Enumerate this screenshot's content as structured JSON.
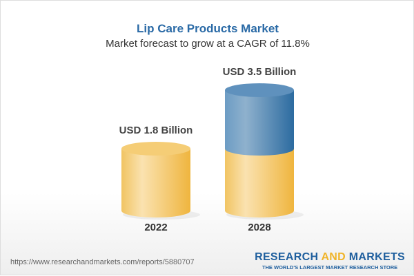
{
  "title": "Lip Care Products Market",
  "subtitle": "Market forecast to grow at a CAGR of 11.8%",
  "chart_data": {
    "type": "bar",
    "style": "3d-cylinder",
    "categories": [
      "2022",
      "2028"
    ],
    "values": [
      1.8,
      3.5
    ],
    "unit": "USD Billion",
    "data_labels": [
      "USD 1.8 Billion",
      "USD 3.5 Billion"
    ],
    "colors": {
      "base": "#f2c35a",
      "growth": "#3f7bb0"
    }
  },
  "footer": {
    "url": "https://www.researchandmarkets.com/reports/5880707",
    "logo_part1": "RESEARCH ",
    "logo_part2": "AND",
    "logo_part3": " MARKETS",
    "tagline": "THE WORLD'S LARGEST MARKET RESEARCH STORE"
  }
}
